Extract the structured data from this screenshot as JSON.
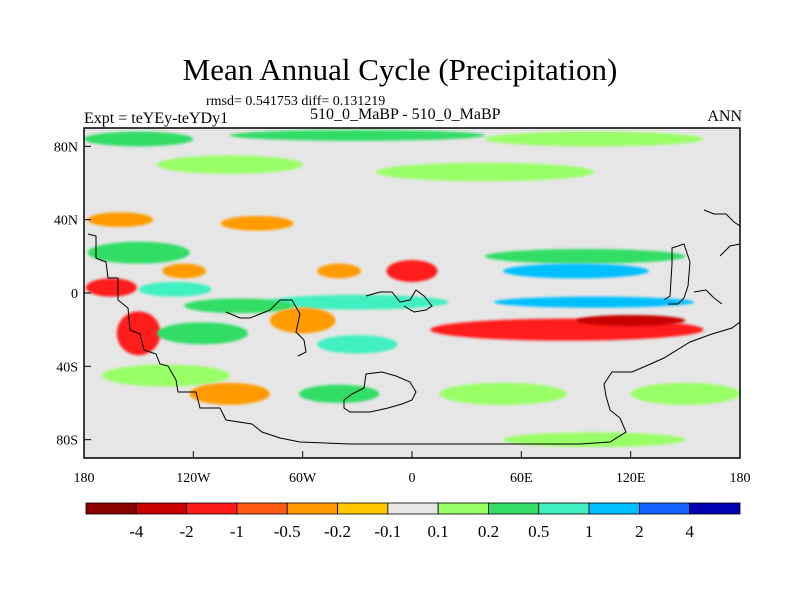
{
  "chart_data": {
    "type": "heatmap",
    "title": "Mean Annual Cycle (Precipitation)",
    "stats_text": "rmsd= 0.541753  diff= 0.131219",
    "left_subtitle": "Expt = teYEy-teYDy1",
    "center_subtitle": "510_0_MaBP - 510_0_MaBP",
    "right_subtitle": "ANN",
    "xlim": [
      -180,
      180
    ],
    "ylim": [
      -90,
      90
    ],
    "x_ticks": [
      {
        "value": -180,
        "label": "180"
      },
      {
        "value": -120,
        "label": "120W"
      },
      {
        "value": -60,
        "label": "60W"
      },
      {
        "value": 0,
        "label": "0"
      },
      {
        "value": 60,
        "label": "60E"
      },
      {
        "value": 120,
        "label": "120E"
      },
      {
        "value": 180,
        "label": "180"
      }
    ],
    "y_ticks": [
      {
        "value": 80,
        "label": "80N"
      },
      {
        "value": 40,
        "label": "40N"
      },
      {
        "value": 0,
        "label": "0"
      },
      {
        "value": -40,
        "label": "40S"
      },
      {
        "value": -80,
        "label": "80S"
      }
    ],
    "colorbar": {
      "labels": [
        "-4",
        "-2",
        "-1",
        "-0.5",
        "-0.2",
        "-0.1",
        "0.1",
        "0.2",
        "0.5",
        "1",
        "2",
        "4"
      ],
      "colors": [
        "#8b0000",
        "#c80000",
        "#ff1a1a",
        "#ff5a14",
        "#ff9b00",
        "#ffc800",
        "#e6e6e6",
        "#99ff66",
        "#33dd66",
        "#40f0c0",
        "#00bfff",
        "#1464ff",
        "#0000b4"
      ]
    },
    "background_color": "#e6e6e6",
    "features": [
      {
        "lon": -150,
        "lat": 84,
        "rx": 30,
        "ry": 4,
        "value": 0.3
      },
      {
        "lon": -30,
        "lat": 86,
        "rx": 70,
        "ry": 3,
        "value": 0.3
      },
      {
        "lon": 100,
        "lat": 84,
        "rx": 60,
        "ry": 4,
        "value": 0.15
      },
      {
        "lon": -100,
        "lat": 70,
        "rx": 40,
        "ry": 5,
        "value": 0.15
      },
      {
        "lon": 40,
        "lat": 66,
        "rx": 60,
        "ry": 5,
        "value": 0.15
      },
      {
        "lon": -160,
        "lat": 40,
        "rx": 18,
        "ry": 4,
        "value": -0.5
      },
      {
        "lon": -85,
        "lat": 38,
        "rx": 20,
        "ry": 4,
        "value": -0.3
      },
      {
        "lon": -150,
        "lat": 22,
        "rx": 28,
        "ry": 6,
        "value": 0.3
      },
      {
        "lon": 95,
        "lat": 20,
        "rx": 55,
        "ry": 4,
        "value": 0.3
      },
      {
        "lon": 90,
        "lat": 12,
        "rx": 40,
        "ry": 4,
        "value": 1.5
      },
      {
        "lon": 0,
        "lat": 12,
        "rx": 14,
        "ry": 6,
        "value": -1.5
      },
      {
        "lon": -40,
        "lat": 12,
        "rx": 12,
        "ry": 4,
        "value": -0.5
      },
      {
        "lon": -125,
        "lat": 12,
        "rx": 12,
        "ry": 4,
        "value": -0.5
      },
      {
        "lon": -165,
        "lat": 3,
        "rx": 14,
        "ry": 5,
        "value": -1.5
      },
      {
        "lon": -130,
        "lat": 2,
        "rx": 20,
        "ry": 4,
        "value": 0.7
      },
      {
        "lon": -30,
        "lat": -5,
        "rx": 50,
        "ry": 4,
        "value": 0.8
      },
      {
        "lon": -95,
        "lat": -7,
        "rx": 30,
        "ry": 4,
        "value": 0.3
      },
      {
        "lon": 100,
        "lat": -5,
        "rx": 55,
        "ry": 3,
        "value": 1.5
      },
      {
        "lon": 85,
        "lat": -20,
        "rx": 75,
        "ry": 6,
        "value": -1.5
      },
      {
        "lon": 120,
        "lat": -15,
        "rx": 30,
        "ry": 3,
        "value": -2.5
      },
      {
        "lon": -150,
        "lat": -22,
        "rx": 12,
        "ry": 12,
        "value": -1.5
      },
      {
        "lon": -115,
        "lat": -22,
        "rx": 25,
        "ry": 6,
        "value": 0.3
      },
      {
        "lon": -60,
        "lat": -15,
        "rx": 18,
        "ry": 7,
        "value": -0.5
      },
      {
        "lon": -30,
        "lat": -28,
        "rx": 22,
        "ry": 5,
        "value": 0.8
      },
      {
        "lon": -135,
        "lat": -45,
        "rx": 35,
        "ry": 6,
        "value": 0.15
      },
      {
        "lon": -100,
        "lat": -55,
        "rx": 22,
        "ry": 6,
        "value": -0.5
      },
      {
        "lon": -40,
        "lat": -55,
        "rx": 22,
        "ry": 5,
        "value": 0.3
      },
      {
        "lon": 50,
        "lat": -55,
        "rx": 35,
        "ry": 6,
        "value": 0.15
      },
      {
        "lon": 150,
        "lat": -55,
        "rx": 30,
        "ry": 6,
        "value": 0.15
      },
      {
        "lon": 100,
        "lat": -80,
        "rx": 50,
        "ry": 4,
        "value": 0.15
      }
    ]
  }
}
